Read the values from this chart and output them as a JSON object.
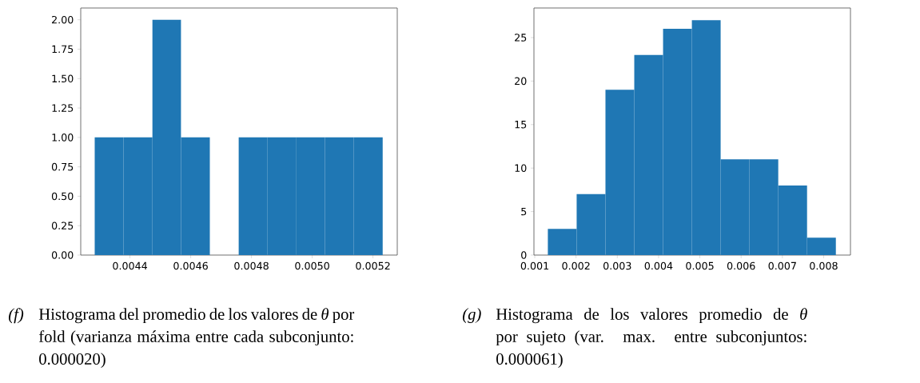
{
  "chart_data": [
    {
      "type": "histogram",
      "color": "#1f77b4",
      "bins": [
        0.004284,
        0.004379,
        0.004474,
        0.004568,
        0.004663,
        0.004758,
        0.004853,
        0.004948,
        0.005042,
        0.005137,
        0.005232
      ],
      "values": [
        1,
        1,
        2,
        1,
        0,
        1,
        1,
        1,
        1,
        1
      ],
      "xlim": [
        0.004238,
        0.00528
      ],
      "ylim": [
        0,
        2.1
      ],
      "xticks": [
        {
          "value": 0.0044,
          "label": "0.0044"
        },
        {
          "value": 0.0046,
          "label": "0.0046"
        },
        {
          "value": 0.0048,
          "label": "0.0048"
        },
        {
          "value": 0.005,
          "label": "0.0050"
        },
        {
          "value": 0.0052,
          "label": "0.0052"
        }
      ],
      "yticks": [
        {
          "value": 0,
          "label": "0.00"
        },
        {
          "value": 0.25,
          "label": "0.25"
        },
        {
          "value": 0.5,
          "label": "0.50"
        },
        {
          "value": 0.75,
          "label": "0.75"
        },
        {
          "value": 1,
          "label": "1.00"
        },
        {
          "value": 1.25,
          "label": "1.25"
        },
        {
          "value": 1.5,
          "label": "1.50"
        },
        {
          "value": 1.75,
          "label": "1.75"
        },
        {
          "value": 2,
          "label": "2.00"
        }
      ],
      "annotations": [
        "*(f)*",
        "Histograma del promedio de los valores de *θ* por fold (varianza máxima entre cada subconjunto: 0.000020)"
      ]
    },
    {
      "type": "histogram",
      "color": "#1f77b4",
      "bins": [
        0.001317,
        0.002015,
        0.002713,
        0.003411,
        0.004109,
        0.004807,
        0.005504,
        0.006202,
        0.0069,
        0.007598,
        0.008296
      ],
      "values": [
        3,
        7,
        19,
        23,
        26,
        27,
        11,
        11,
        8,
        2
      ],
      "xlim": [
        0.00098,
        0.00865
      ],
      "ylim": [
        0,
        28.4
      ],
      "xticks": [
        0.001,
        0.002,
        0.003,
        0.004,
        0.005,
        0.006,
        0.007,
        0.008
      ],
      "yticks": [
        0,
        5,
        10,
        15,
        20,
        25
      ],
      "annotations": [
        "*(g)*",
        "Histograma de los valores promedio de *θ* por sujeto (var. max. entre subconjuntos: 0.000061)"
      ]
    }
  ]
}
